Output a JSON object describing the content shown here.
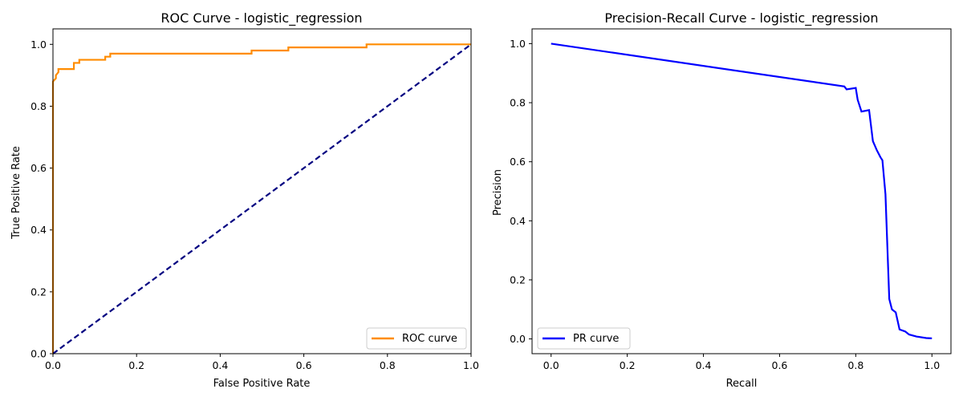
{
  "chart_data": [
    {
      "type": "line",
      "title": "ROC Curve - logistic_regression",
      "xlabel": "False Positive Rate",
      "ylabel": "True Positive Rate",
      "xlim": [
        0,
        1
      ],
      "ylim": [
        0,
        1.05
      ],
      "xticks": [
        "0.0",
        "0.2",
        "0.4",
        "0.6",
        "0.8",
        "1.0"
      ],
      "yticks": [
        "0.0",
        "0.2",
        "0.4",
        "0.6",
        "0.8",
        "1.0"
      ],
      "grid": false,
      "legend_position": "bottom-right",
      "series": [
        {
          "name": "ROC curve",
          "color": "#ff8c00",
          "style": "step",
          "x": [
            0.0,
            0.0,
            0.007,
            0.007,
            0.013,
            0.013,
            0.05,
            0.05,
            0.063,
            0.063,
            0.125,
            0.125,
            0.137,
            0.137,
            0.475,
            0.475,
            0.563,
            0.563,
            0.75,
            0.75,
            1.0
          ],
          "y": [
            0.0,
            0.88,
            0.89,
            0.9,
            0.91,
            0.92,
            0.92,
            0.94,
            0.94,
            0.95,
            0.95,
            0.96,
            0.96,
            0.97,
            0.97,
            0.98,
            0.98,
            0.99,
            0.99,
            1.0,
            1.0
          ]
        },
        {
          "name": "",
          "color": "#000080",
          "style": "dashed",
          "x": [
            0,
            1
          ],
          "y": [
            0,
            1
          ]
        }
      ]
    },
    {
      "type": "line",
      "title": "Precision-Recall Curve - logistic_regression",
      "xlabel": "Recall",
      "ylabel": "Precision",
      "xlim": [
        -0.05,
        1.05
      ],
      "ylim": [
        -0.05,
        1.05
      ],
      "xticks": [
        "0.0",
        "0.2",
        "0.4",
        "0.6",
        "0.8",
        "1.0"
      ],
      "yticks": [
        "0.0",
        "0.2",
        "0.4",
        "0.6",
        "0.8",
        "1.0"
      ],
      "grid": false,
      "legend_position": "bottom-left",
      "series": [
        {
          "name": "PR curve",
          "color": "#0000ff",
          "style": "solid",
          "x": [
            0.0,
            0.77,
            0.77,
            0.776,
            0.776,
            0.8,
            0.8,
            0.805,
            0.805,
            0.815,
            0.815,
            0.835,
            0.835,
            0.845,
            0.845,
            0.855,
            0.855,
            0.865,
            0.865,
            0.87,
            0.87,
            0.878,
            0.878,
            0.888,
            0.888,
            0.895,
            0.895,
            0.905,
            0.905,
            0.915,
            0.915,
            0.93,
            0.93,
            0.94,
            0.94,
            0.96,
            0.96,
            0.985,
            0.985,
            1.0
          ],
          "y": [
            1.0,
            0.855,
            0.855,
            0.845,
            0.845,
            0.85,
            0.85,
            0.81,
            0.81,
            0.77,
            0.77,
            0.775,
            0.775,
            0.67,
            0.67,
            0.64,
            0.64,
            0.615,
            0.615,
            0.605,
            0.605,
            0.49,
            0.49,
            0.135,
            0.135,
            0.1,
            0.1,
            0.09,
            0.09,
            0.032,
            0.032,
            0.025,
            0.025,
            0.015,
            0.015,
            0.008,
            0.008,
            0.003,
            0.003,
            0.002
          ]
        }
      ]
    }
  ]
}
